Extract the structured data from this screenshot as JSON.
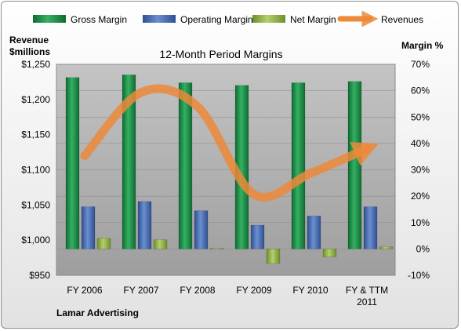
{
  "chart_data": {
    "type": "bar",
    "title": "12-Month Period Margins",
    "company": "Lamar Advertising",
    "y_left_label_line1": "Revenue",
    "y_left_label_line2": "$millions",
    "y_right_label": "Margin %",
    "categories": [
      "FY 2006",
      "FY 2007",
      "FY 2008",
      "FY 2009",
      "FY 2010",
      "FY & TTM 2011"
    ],
    "y_left_ticks": [
      "$1,250",
      "$1,200",
      "$1,150",
      "$1,100",
      "$1,050",
      "$1,000",
      "$950"
    ],
    "y_right_ticks": [
      "70%",
      "60%",
      "50%",
      "40%",
      "30%",
      "20%",
      "10%",
      "0%",
      "-10%"
    ],
    "ylim_left": [
      950,
      1250
    ],
    "ylim_right": [
      -10,
      70
    ],
    "legend_position": "top",
    "series": [
      {
        "name": "Gross Margin",
        "axis": "right",
        "kind": "bar",
        "color": "#1e8c45",
        "values": [
          65,
          66,
          63,
          62,
          63,
          63.5
        ]
      },
      {
        "name": "Operating Margin",
        "axis": "right",
        "kind": "bar",
        "color": "#4a6fb5",
        "values": [
          16,
          18,
          14.5,
          9,
          12.5,
          16
        ]
      },
      {
        "name": "Net Margin",
        "axis": "right",
        "kind": "bar",
        "color": "#8fb34a",
        "values": [
          4,
          3.5,
          0.2,
          -5.5,
          -3,
          0.8
        ]
      },
      {
        "name": "Revenues",
        "axis": "left",
        "kind": "line",
        "color": "#ec8a3a",
        "values": [
          1120,
          1210,
          1190,
          1065,
          1095,
          1130
        ]
      }
    ]
  }
}
